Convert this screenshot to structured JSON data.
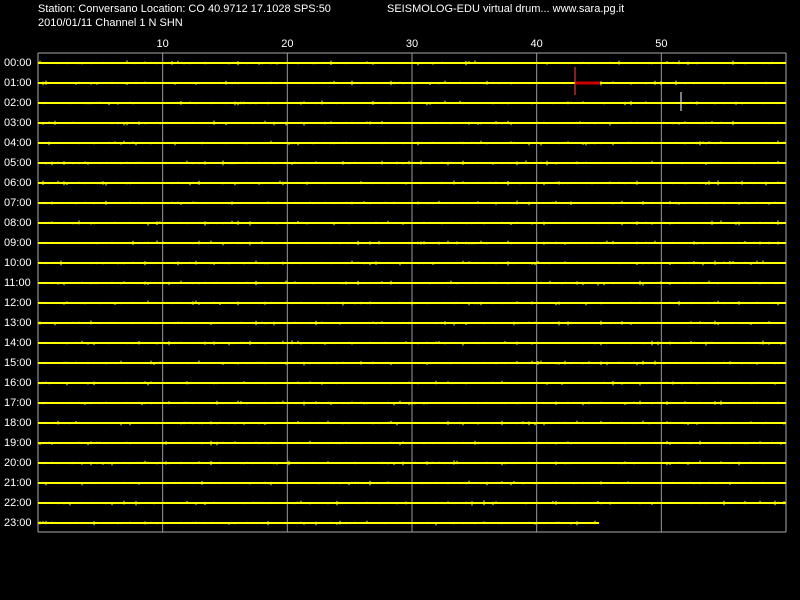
{
  "chart_data": {
    "type": "helicorder",
    "title": "Station: Conversano Location: CO 40.9712 17.1028 SPS:50",
    "subtitle": "2010/01/11  Channel 1 N SHN",
    "source": "SEISMOLOG-EDU virtual drum... www.sara.pg.it",
    "categories": [
      "00:00",
      "01:00",
      "02:00",
      "03:00",
      "04:00",
      "05:00",
      "06:00",
      "07:00",
      "08:00",
      "09:00",
      "10:00",
      "11:00",
      "12:00",
      "13:00",
      "14:00",
      "15:00",
      "16:00",
      "17:00",
      "18:00",
      "19:00",
      "20:00",
      "21:00",
      "22:00",
      "23:00"
    ],
    "values": [
      60,
      60,
      60,
      60,
      60,
      60,
      60,
      60,
      60,
      60,
      60,
      60,
      60,
      60,
      60,
      60,
      60,
      60,
      60,
      60,
      60,
      60,
      60,
      45
    ],
    "color": "#ffff00",
    "xlim": [
      0,
      60
    ],
    "xticks": [
      10,
      20,
      30,
      40,
      50
    ],
    "grid": true
  }
}
